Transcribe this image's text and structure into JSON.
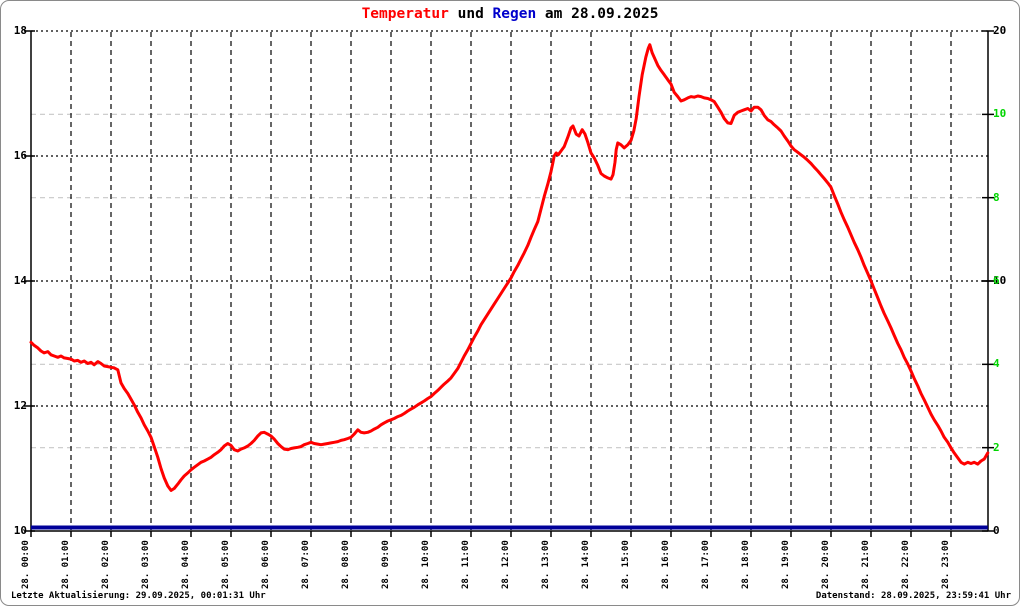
{
  "title": {
    "part1": "Temperatur",
    "part2": " und ",
    "part3": "Regen",
    "part4": " am 28.09.2025"
  },
  "footer": {
    "left": "Letzte Aktualisierung: 29.09.2025, 00:01:31 Uhr",
    "right": "Datenstand: 28.09.2025, 23:59:41 Uhr"
  },
  "colors": {
    "temperature": "#ff0000",
    "rain_line": "#000099",
    "rain_label_blue": "#0000cc",
    "green_axis": "#00d500",
    "grid_black": "#000000",
    "grid_gray": "#c8c8c8",
    "background": "#ffffff",
    "border": "#8a8a8a"
  },
  "chart_data": {
    "type": "line",
    "title": "Temperatur und Regen am 28.09.2025",
    "grid": "on",
    "x_labels": [
      "28. 00:00",
      "28. 01:00",
      "28. 02:00",
      "28. 03:00",
      "28. 04:00",
      "28. 05:00",
      "28. 06:00",
      "28. 07:00",
      "28. 08:00",
      "28. 09:00",
      "28. 10:00",
      "28. 11:00",
      "28. 12:00",
      "28. 13:00",
      "28. 14:00",
      "28. 15:00",
      "28. 16:00",
      "28. 17:00",
      "28. 18:00",
      "28. 19:00",
      "28. 20:00",
      "28. 21:00",
      "28. 22:00",
      "28. 23:00"
    ],
    "left_axis": {
      "range": [
        10,
        18
      ],
      "ticks": [
        18,
        16,
        14,
        12,
        10
      ]
    },
    "right_axis_black": {
      "range": [
        0,
        20
      ],
      "ticks": [
        20,
        10,
        0
      ]
    },
    "right_axis_green": {
      "range": [
        0,
        12
      ],
      "ticks": [
        10,
        8,
        6,
        4,
        2
      ]
    },
    "series": [
      {
        "name": "Temperatur",
        "axis": "left",
        "color": "#ff0000",
        "points": [
          [
            0,
            13.02
          ],
          [
            0.08,
            12.97
          ],
          [
            0.17,
            12.93
          ],
          [
            0.25,
            12.88
          ],
          [
            0.33,
            12.85
          ],
          [
            0.42,
            12.87
          ],
          [
            0.5,
            12.82
          ],
          [
            0.58,
            12.8
          ],
          [
            0.67,
            12.78
          ],
          [
            0.75,
            12.8
          ],
          [
            0.83,
            12.77
          ],
          [
            0.92,
            12.76
          ],
          [
            1,
            12.75
          ],
          [
            1.08,
            12.72
          ],
          [
            1.17,
            12.73
          ],
          [
            1.25,
            12.7
          ],
          [
            1.33,
            12.72
          ],
          [
            1.42,
            12.68
          ],
          [
            1.5,
            12.7
          ],
          [
            1.58,
            12.66
          ],
          [
            1.67,
            12.71
          ],
          [
            1.75,
            12.68
          ],
          [
            1.83,
            12.64
          ],
          [
            1.92,
            12.63
          ],
          [
            2,
            12.62
          ],
          [
            2.08,
            12.61
          ],
          [
            2.17,
            12.58
          ],
          [
            2.25,
            12.37
          ],
          [
            2.33,
            12.28
          ],
          [
            2.42,
            12.2
          ],
          [
            2.5,
            12.11
          ],
          [
            2.58,
            12.02
          ],
          [
            2.67,
            11.9
          ],
          [
            2.75,
            11.81
          ],
          [
            2.83,
            11.7
          ],
          [
            2.92,
            11.6
          ],
          [
            3,
            11.5
          ],
          [
            3.08,
            11.35
          ],
          [
            3.17,
            11.18
          ],
          [
            3.25,
            11.0
          ],
          [
            3.33,
            10.85
          ],
          [
            3.42,
            10.72
          ],
          [
            3.5,
            10.65
          ],
          [
            3.58,
            10.68
          ],
          [
            3.67,
            10.75
          ],
          [
            3.75,
            10.82
          ],
          [
            3.83,
            10.88
          ],
          [
            3.92,
            10.93
          ],
          [
            4,
            10.98
          ],
          [
            4.08,
            11.02
          ],
          [
            4.17,
            11.06
          ],
          [
            4.25,
            11.1
          ],
          [
            4.33,
            11.12
          ],
          [
            4.42,
            11.15
          ],
          [
            4.5,
            11.18
          ],
          [
            4.58,
            11.22
          ],
          [
            4.67,
            11.26
          ],
          [
            4.75,
            11.3
          ],
          [
            4.83,
            11.36
          ],
          [
            4.92,
            11.4
          ],
          [
            5,
            11.37
          ],
          [
            5.08,
            11.3
          ],
          [
            5.17,
            11.28
          ],
          [
            5.25,
            11.31
          ],
          [
            5.33,
            11.33
          ],
          [
            5.42,
            11.36
          ],
          [
            5.5,
            11.4
          ],
          [
            5.58,
            11.45
          ],
          [
            5.67,
            11.52
          ],
          [
            5.75,
            11.57
          ],
          [
            5.83,
            11.58
          ],
          [
            5.92,
            11.55
          ],
          [
            6,
            11.52
          ],
          [
            6.08,
            11.47
          ],
          [
            6.17,
            11.4
          ],
          [
            6.25,
            11.35
          ],
          [
            6.33,
            11.31
          ],
          [
            6.42,
            11.3
          ],
          [
            6.5,
            11.32
          ],
          [
            6.58,
            11.33
          ],
          [
            6.67,
            11.34
          ],
          [
            6.75,
            11.35
          ],
          [
            6.83,
            11.38
          ],
          [
            6.92,
            11.4
          ],
          [
            7,
            11.42
          ],
          [
            7.08,
            11.4
          ],
          [
            7.17,
            11.39
          ],
          [
            7.25,
            11.38
          ],
          [
            7.33,
            11.39
          ],
          [
            7.42,
            11.4
          ],
          [
            7.5,
            11.41
          ],
          [
            7.58,
            11.42
          ],
          [
            7.67,
            11.43
          ],
          [
            7.75,
            11.45
          ],
          [
            7.83,
            11.46
          ],
          [
            7.92,
            11.48
          ],
          [
            8,
            11.5
          ],
          [
            8.08,
            11.55
          ],
          [
            8.17,
            11.62
          ],
          [
            8.25,
            11.58
          ],
          [
            8.33,
            11.57
          ],
          [
            8.42,
            11.58
          ],
          [
            8.5,
            11.6
          ],
          [
            8.58,
            11.63
          ],
          [
            8.67,
            11.66
          ],
          [
            8.75,
            11.7
          ],
          [
            8.83,
            11.73
          ],
          [
            8.92,
            11.76
          ],
          [
            9,
            11.78
          ],
          [
            9.08,
            11.8
          ],
          [
            9.17,
            11.83
          ],
          [
            9.25,
            11.85
          ],
          [
            9.33,
            11.88
          ],
          [
            9.42,
            11.92
          ],
          [
            9.5,
            11.95
          ],
          [
            9.58,
            11.98
          ],
          [
            9.67,
            12.02
          ],
          [
            9.75,
            12.05
          ],
          [
            9.83,
            12.08
          ],
          [
            9.92,
            12.12
          ],
          [
            10,
            12.15
          ],
          [
            10.08,
            12.2
          ],
          [
            10.17,
            12.25
          ],
          [
            10.25,
            12.3
          ],
          [
            10.33,
            12.35
          ],
          [
            10.42,
            12.4
          ],
          [
            10.5,
            12.45
          ],
          [
            10.58,
            12.52
          ],
          [
            10.67,
            12.6
          ],
          [
            10.75,
            12.7
          ],
          [
            10.83,
            12.8
          ],
          [
            10.92,
            12.9
          ],
          [
            11,
            13.0
          ],
          [
            11.08,
            13.1
          ],
          [
            11.17,
            13.2
          ],
          [
            11.25,
            13.3
          ],
          [
            11.33,
            13.38
          ],
          [
            11.42,
            13.47
          ],
          [
            11.5,
            13.55
          ],
          [
            11.58,
            13.63
          ],
          [
            11.67,
            13.72
          ],
          [
            11.75,
            13.8
          ],
          [
            11.83,
            13.88
          ],
          [
            11.92,
            13.97
          ],
          [
            12,
            14.05
          ],
          [
            12.08,
            14.15
          ],
          [
            12.17,
            14.25
          ],
          [
            12.25,
            14.35
          ],
          [
            12.33,
            14.45
          ],
          [
            12.42,
            14.57
          ],
          [
            12.5,
            14.7
          ],
          [
            12.58,
            14.82
          ],
          [
            12.67,
            14.95
          ],
          [
            12.75,
            15.15
          ],
          [
            12.83,
            15.35
          ],
          [
            12.92,
            15.55
          ],
          [
            13,
            15.75
          ],
          [
            13.05,
            15.9
          ],
          [
            13.08,
            16.0
          ],
          [
            13.13,
            16.05
          ],
          [
            13.18,
            16.02
          ],
          [
            13.25,
            16.08
          ],
          [
            13.33,
            16.15
          ],
          [
            13.42,
            16.3
          ],
          [
            13.5,
            16.45
          ],
          [
            13.55,
            16.48
          ],
          [
            13.63,
            16.35
          ],
          [
            13.7,
            16.32
          ],
          [
            13.78,
            16.42
          ],
          [
            13.85,
            16.35
          ],
          [
            13.92,
            16.22
          ],
          [
            14,
            16.05
          ],
          [
            14.08,
            15.97
          ],
          [
            14.17,
            15.85
          ],
          [
            14.25,
            15.72
          ],
          [
            14.33,
            15.68
          ],
          [
            14.42,
            15.65
          ],
          [
            14.5,
            15.63
          ],
          [
            14.55,
            15.7
          ],
          [
            14.6,
            15.9
          ],
          [
            14.63,
            16.1
          ],
          [
            14.67,
            16.21
          ],
          [
            14.75,
            16.18
          ],
          [
            14.83,
            16.13
          ],
          [
            14.92,
            16.18
          ],
          [
            15,
            16.25
          ],
          [
            15.07,
            16.4
          ],
          [
            15.13,
            16.6
          ],
          [
            15.2,
            16.95
          ],
          [
            15.28,
            17.3
          ],
          [
            15.37,
            17.58
          ],
          [
            15.43,
            17.72
          ],
          [
            15.47,
            17.78
          ],
          [
            15.53,
            17.65
          ],
          [
            15.6,
            17.55
          ],
          [
            15.67,
            17.45
          ],
          [
            15.75,
            17.37
          ],
          [
            15.83,
            17.3
          ],
          [
            15.92,
            17.22
          ],
          [
            16,
            17.15
          ],
          [
            16.08,
            17.02
          ],
          [
            16.17,
            16.95
          ],
          [
            16.25,
            16.88
          ],
          [
            16.33,
            16.9
          ],
          [
            16.42,
            16.93
          ],
          [
            16.5,
            16.95
          ],
          [
            16.58,
            16.94
          ],
          [
            16.67,
            16.96
          ],
          [
            16.75,
            16.95
          ],
          [
            16.83,
            16.93
          ],
          [
            16.92,
            16.92
          ],
          [
            17,
            16.9
          ],
          [
            17.08,
            16.87
          ],
          [
            17.17,
            16.78
          ],
          [
            17.25,
            16.7
          ],
          [
            17.33,
            16.6
          ],
          [
            17.42,
            16.53
          ],
          [
            17.5,
            16.52
          ],
          [
            17.58,
            16.65
          ],
          [
            17.67,
            16.7
          ],
          [
            17.75,
            16.72
          ],
          [
            17.83,
            16.74
          ],
          [
            17.92,
            16.76
          ],
          [
            18,
            16.72
          ],
          [
            18.08,
            16.78
          ],
          [
            18.17,
            16.78
          ],
          [
            18.25,
            16.74
          ],
          [
            18.33,
            16.65
          ],
          [
            18.42,
            16.58
          ],
          [
            18.5,
            16.55
          ],
          [
            18.58,
            16.5
          ],
          [
            18.67,
            16.45
          ],
          [
            18.75,
            16.4
          ],
          [
            18.83,
            16.32
          ],
          [
            18.92,
            16.24
          ],
          [
            19,
            16.16
          ],
          [
            19.08,
            16.1
          ],
          [
            19.17,
            16.06
          ],
          [
            19.25,
            16.02
          ],
          [
            19.33,
            15.98
          ],
          [
            19.42,
            15.93
          ],
          [
            19.5,
            15.88
          ],
          [
            19.58,
            15.82
          ],
          [
            19.67,
            15.76
          ],
          [
            19.75,
            15.7
          ],
          [
            19.83,
            15.64
          ],
          [
            19.92,
            15.57
          ],
          [
            20,
            15.5
          ],
          [
            20.08,
            15.37
          ],
          [
            20.17,
            15.23
          ],
          [
            20.25,
            15.1
          ],
          [
            20.33,
            14.98
          ],
          [
            20.42,
            14.86
          ],
          [
            20.5,
            14.74
          ],
          [
            20.58,
            14.62
          ],
          [
            20.67,
            14.5
          ],
          [
            20.75,
            14.38
          ],
          [
            20.83,
            14.25
          ],
          [
            20.92,
            14.12
          ],
          [
            21,
            14.0
          ],
          [
            21.08,
            13.87
          ],
          [
            21.17,
            13.73
          ],
          [
            21.25,
            13.6
          ],
          [
            21.33,
            13.48
          ],
          [
            21.42,
            13.36
          ],
          [
            21.5,
            13.25
          ],
          [
            21.58,
            13.13
          ],
          [
            21.67,
            13.0
          ],
          [
            21.75,
            12.9
          ],
          [
            21.83,
            12.78
          ],
          [
            21.92,
            12.67
          ],
          [
            22,
            12.56
          ],
          [
            22.08,
            12.44
          ],
          [
            22.17,
            12.32
          ],
          [
            22.25,
            12.2
          ],
          [
            22.33,
            12.1
          ],
          [
            22.42,
            11.98
          ],
          [
            22.5,
            11.87
          ],
          [
            22.58,
            11.78
          ],
          [
            22.67,
            11.69
          ],
          [
            22.75,
            11.6
          ],
          [
            22.83,
            11.5
          ],
          [
            22.92,
            11.42
          ],
          [
            23,
            11.33
          ],
          [
            23.08,
            11.25
          ],
          [
            23.17,
            11.17
          ],
          [
            23.25,
            11.1
          ],
          [
            23.33,
            11.07
          ],
          [
            23.42,
            11.1
          ],
          [
            23.5,
            11.08
          ],
          [
            23.58,
            11.1
          ],
          [
            23.67,
            11.07
          ],
          [
            23.75,
            11.12
          ],
          [
            23.83,
            11.15
          ],
          [
            23.92,
            11.25
          ]
        ]
      },
      {
        "name": "Regen",
        "axis": "right_black",
        "color": "#000099",
        "points": [
          [
            0,
            0
          ],
          [
            23.92,
            0
          ]
        ]
      }
    ]
  }
}
